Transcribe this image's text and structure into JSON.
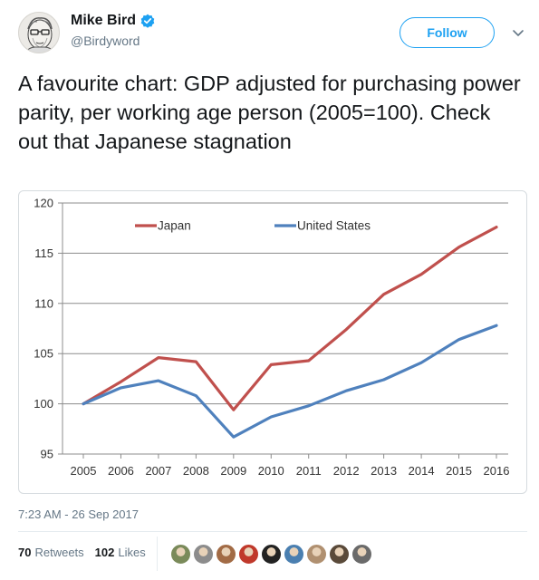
{
  "user": {
    "name": "Mike Bird",
    "handle": "@Birdyword",
    "follow_label": "Follow"
  },
  "tweet": {
    "text": "A favourite chart: GDP adjusted for purchasing power parity, per working age person (2005=100). Check out that Japanese stagnation",
    "timestamp": "7:23 AM - 26 Sep 2017",
    "retweets_count": "70",
    "retweets_label": "Retweets",
    "likes_count": "102",
    "likes_label": "Likes"
  },
  "likers": [
    {
      "icon": "avatar-icon",
      "color": "#7a8a5a"
    },
    {
      "icon": "avatar-icon",
      "color": "#8c8c8c"
    },
    {
      "icon": "avatar-icon",
      "color": "#a26b45"
    },
    {
      "icon": "avatar-icon",
      "color": "#c0392b"
    },
    {
      "icon": "avatar-icon",
      "color": "#222222"
    },
    {
      "icon": "avatar-icon",
      "color": "#4a7fb0"
    },
    {
      "icon": "avatar-icon",
      "color": "#b09070"
    },
    {
      "icon": "avatar-icon",
      "color": "#5a4a3a"
    },
    {
      "icon": "avatar-icon",
      "color": "#6a6a6a"
    }
  ],
  "colors": {
    "japan": "#c0504d",
    "us": "#4f81bd",
    "accent": "#1da1f2"
  },
  "chart_data": {
    "type": "line",
    "title": "",
    "xlabel": "",
    "ylabel": "",
    "x": [
      "2005",
      "2006",
      "2007",
      "2008",
      "2009",
      "2010",
      "2011",
      "2012",
      "2013",
      "2014",
      "2015",
      "2016"
    ],
    "ylim": [
      95,
      120
    ],
    "yticks": [
      95,
      100,
      105,
      110,
      115,
      120
    ],
    "grid": true,
    "legend": "top-center",
    "series": [
      {
        "name": "Japan",
        "color": "#c0504d",
        "values": [
          100,
          102.2,
          104.6,
          104.2,
          99.4,
          103.9,
          104.3,
          107.4,
          110.9,
          112.9,
          115.6,
          117.6
        ]
      },
      {
        "name": "United States",
        "color": "#4f81bd",
        "values": [
          100,
          101.6,
          102.3,
          100.8,
          96.7,
          98.7,
          99.8,
          101.3,
          102.4,
          104.1,
          106.4,
          107.8
        ]
      }
    ]
  }
}
